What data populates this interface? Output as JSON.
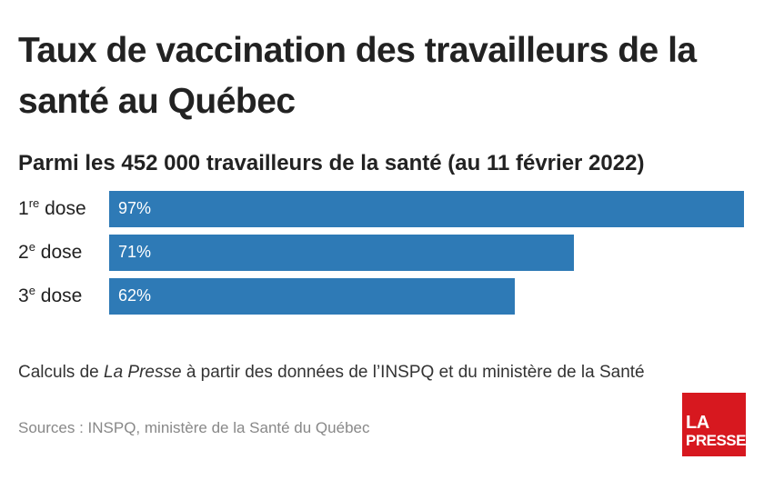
{
  "title": "Taux de vaccination des travailleurs de la santé au Québec",
  "subtitle": "Parmi les 452 000 travailleurs de la santé (au 11 février 2022)",
  "chart_data": {
    "type": "bar",
    "orientation": "horizontal",
    "categories": [
      {
        "num": "1",
        "sup": "re",
        "word": "dose"
      },
      {
        "num": "2",
        "sup": "e",
        "word": "dose"
      },
      {
        "num": "3",
        "sup": "e",
        "word": "dose"
      }
    ],
    "values": [
      97,
      71,
      62
    ],
    "value_labels": [
      "97%",
      "71%",
      "62%"
    ],
    "xlim": [
      0,
      97
    ],
    "bar_color": "#2e7ab6",
    "grid": false,
    "legend": false
  },
  "note": {
    "prefix": "Calculs de ",
    "publication": "La Presse",
    "suffix": " à partir des données de l’INSPQ et du ministère de la Santé"
  },
  "sources": "Sources : INSPQ, ministère de la Santé du Québec",
  "logo": {
    "line1": "LA",
    "line2": "PRESSE",
    "color": "#d7181f"
  }
}
